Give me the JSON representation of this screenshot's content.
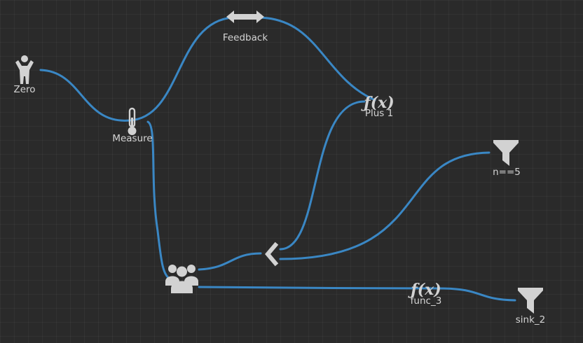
{
  "canvas": {
    "background": "#2a2a2a",
    "edge_color": "#3a87c4",
    "icon_color": "#d2d2d2",
    "label_color": "#d4d4d4"
  },
  "nodes": {
    "zero": {
      "label": "Zero",
      "icon": "person-icon"
    },
    "measure": {
      "label": "Measure",
      "icon": "thermometer-icon"
    },
    "feedback": {
      "label": "Feedback",
      "icon": "double-arrow-icon"
    },
    "plus1": {
      "label": "Plus 1",
      "icon": "function-icon"
    },
    "n5": {
      "label": "n==5",
      "icon": "filter-icon"
    },
    "group": {
      "label": "",
      "icon": "group-icon"
    },
    "split": {
      "label": "",
      "icon": "chevron-left-icon"
    },
    "func3": {
      "label": "func_3",
      "icon": "function-icon"
    },
    "sink2": {
      "label": "sink_2",
      "icon": "filter-icon"
    }
  },
  "edges": [
    {
      "from": "Zero",
      "to": "Measure"
    },
    {
      "from": "Measure",
      "to": "Feedback"
    },
    {
      "from": "Feedback",
      "to": "Plus 1"
    },
    {
      "from": "Measure",
      "to": "group"
    },
    {
      "from": "group",
      "to": "split"
    },
    {
      "from": "split",
      "to": "Plus 1"
    },
    {
      "from": "split",
      "to": "n==5"
    },
    {
      "from": "group",
      "to": "func_3"
    },
    {
      "from": "func_3",
      "to": "sink_2"
    }
  ]
}
